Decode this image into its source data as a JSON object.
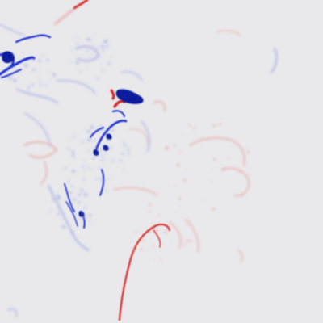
{
  "colors": {
    "background": "#e9e9eb",
    "positive": "#d62a2a",
    "positive_faint": "#e8a3a3",
    "negative": "#1f2fd0",
    "negative_deep": "#0a1a9c",
    "negative_faint": "#9ea6e8"
  }
}
